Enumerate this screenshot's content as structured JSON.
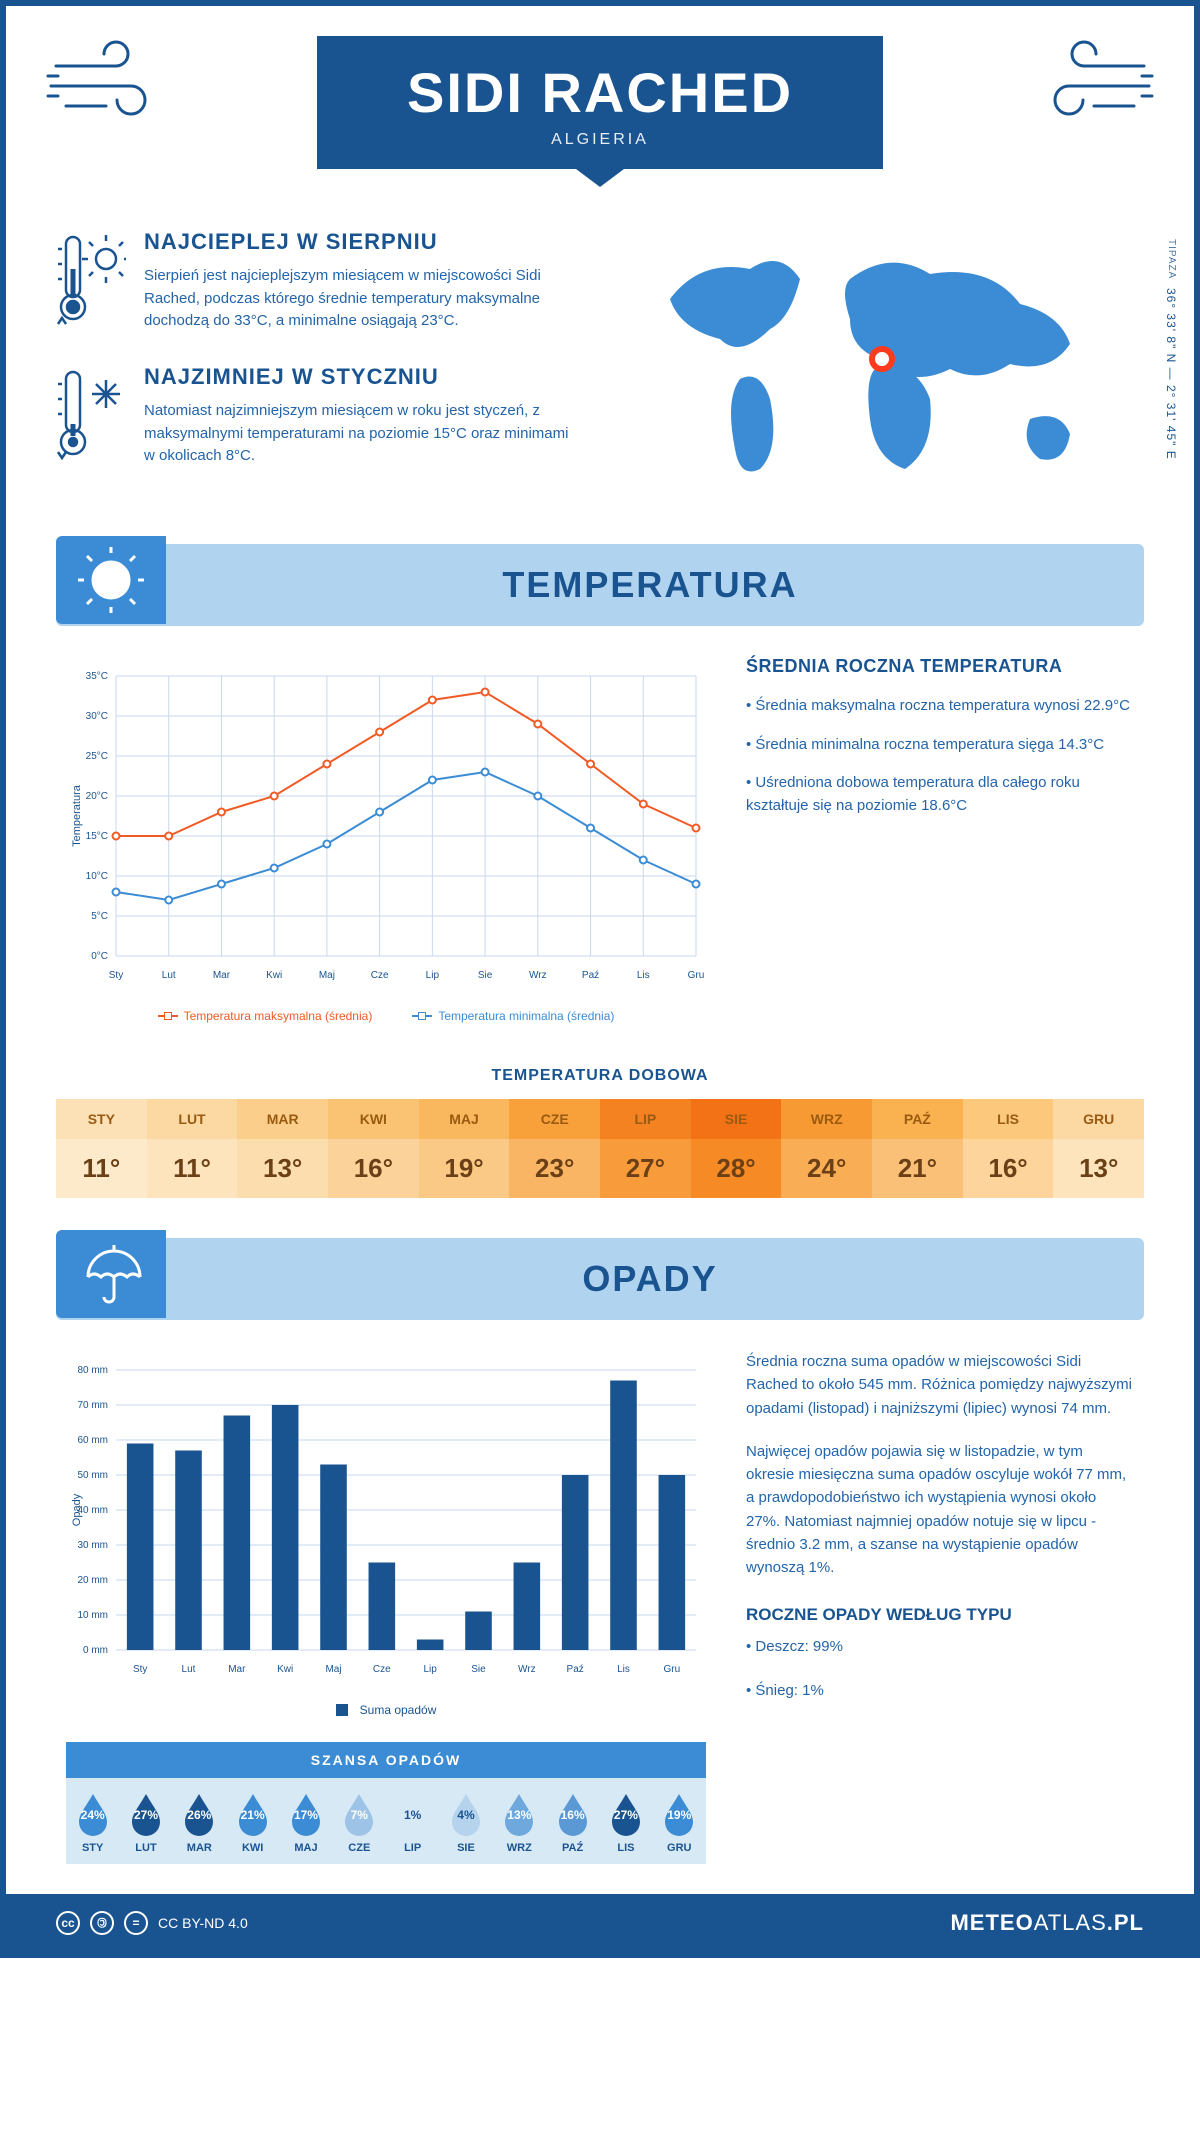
{
  "header": {
    "city": "SIDI RACHED",
    "country": "ALGIERIA"
  },
  "coords": {
    "region": "TIPAZA",
    "value": "36° 33' 8\" N — 2° 31' 45\" E"
  },
  "warmest": {
    "title": "NAJCIEPLEJ W SIERPNIU",
    "text": "Sierpień jest najcieplejszym miesiącem w miejscowości Sidi Rached, podczas którego średnie temperatury maksymalne dochodzą do 33°C, a minimalne osiągają 23°C."
  },
  "coldest": {
    "title": "NAJZIMNIEJ W STYCZNIU",
    "text": "Natomiast najzimniejszym miesiącem w roku jest styczeń, z maksymalnymi temperaturami na poziomie 15°C oraz minimami w okolicach 8°C."
  },
  "temp_section": {
    "title": "TEMPERATURA",
    "side_title": "ŚREDNIA ROCZNA TEMPERATURA",
    "b1": "• Średnia maksymalna roczna temperatura wynosi 22.9°C",
    "b2": "• Średnia minimalna roczna temperatura sięga 14.3°C",
    "b3": "• Uśredniona dobowa temperatura dla całego roku kształtuje się na poziomie 18.6°C"
  },
  "temp_chart": {
    "type": "line",
    "months": [
      "Sty",
      "Lut",
      "Mar",
      "Kwi",
      "Maj",
      "Cze",
      "Lip",
      "Sie",
      "Wrz",
      "Paź",
      "Lis",
      "Gru"
    ],
    "max": [
      15,
      15,
      18,
      20,
      24,
      28,
      32,
      33,
      29,
      24,
      19,
      16
    ],
    "min": [
      8,
      7,
      9,
      11,
      14,
      18,
      22,
      23,
      20,
      16,
      12,
      9
    ],
    "colors": {
      "max": "#f15a24",
      "min": "#3b8cd4",
      "grid": "#c7d9ec",
      "axis": "#1a5490"
    },
    "ylim": [
      0,
      35
    ],
    "ystep": 5,
    "ylabel": "Temperatura",
    "legend_max": "Temperatura maksymalna (średnia)",
    "legend_min": "Temperatura minimalna (średnia)",
    "axis_fontsize": 10,
    "label_fontsize": 11
  },
  "daily": {
    "title": "TEMPERATURA DOBOWA",
    "months": [
      "STY",
      "LUT",
      "MAR",
      "KWI",
      "MAJ",
      "CZE",
      "LIP",
      "SIE",
      "WRZ",
      "PAŹ",
      "LIS",
      "GRU"
    ],
    "values": [
      "11°",
      "11°",
      "13°",
      "16°",
      "19°",
      "23°",
      "27°",
      "28°",
      "24°",
      "21°",
      "16°",
      "13°"
    ],
    "head_colors": [
      "#fce0b6",
      "#fcd9a3",
      "#fbcf8b",
      "#fac374",
      "#f9b85d",
      "#f8a03a",
      "#f58220",
      "#f47216",
      "#f89a34",
      "#fab14f",
      "#fcc87c",
      "#fcd9a3"
    ],
    "val_colors": [
      "#fdeacb",
      "#fde4bd",
      "#fcddae",
      "#fbd39a",
      "#fac986",
      "#f9b564",
      "#f79b3b",
      "#f68a25",
      "#f9ae55",
      "#fac078",
      "#fcd49c",
      "#fde4bd"
    ]
  },
  "precip_section": {
    "title": "OPADY",
    "p1": "Średnia roczna suma opadów w miejscowości Sidi Rached to około 545 mm. Różnica pomiędzy najwyższymi opadami (listopad) i najniższymi (lipiec) wynosi 74 mm.",
    "p2": "Najwięcej opadów pojawia się w listopadzie, w tym okresie miesięczna suma opadów oscyluje wokół 77 mm, a prawdopodobieństwo ich wystąpienia wynosi około 27%. Natomiast najmniej opadów notuje się w lipcu - średnio 3.2 mm, a szanse na wystąpienie opadów wynoszą 1%.",
    "by_type_title": "ROCZNE OPADY WEDŁUG TYPU",
    "rain": "• Deszcz: 99%",
    "snow": "• Śnieg: 1%"
  },
  "precip_chart": {
    "type": "bar",
    "months": [
      "Sty",
      "Lut",
      "Mar",
      "Kwi",
      "Maj",
      "Cze",
      "Lip",
      "Sie",
      "Wrz",
      "Paź",
      "Lis",
      "Gru"
    ],
    "values": [
      59,
      57,
      67,
      70,
      53,
      25,
      3,
      11,
      25,
      50,
      77,
      50
    ],
    "bar_color": "#1a5490",
    "grid_color": "#c7d9ec",
    "ylim": [
      0,
      80
    ],
    "ystep": 10,
    "ylabel": "Opady",
    "legend": "Suma opadów",
    "axis_fontsize": 10
  },
  "chance": {
    "title": "SZANSA OPADÓW",
    "months": [
      "STY",
      "LUT",
      "MAR",
      "KWI",
      "MAJ",
      "CZE",
      "LIP",
      "SIE",
      "WRZ",
      "PAŹ",
      "LIS",
      "GRU"
    ],
    "values": [
      "24%",
      "27%",
      "26%",
      "21%",
      "17%",
      "7%",
      "1%",
      "4%",
      "13%",
      "16%",
      "27%",
      "19%"
    ],
    "drop_colors": [
      "#3b8cd4",
      "#1a5490",
      "#1a5490",
      "#3b8cd4",
      "#3b8cd4",
      "#9dc3e6",
      "#d8e9f6",
      "#b5d3ec",
      "#6fa8dc",
      "#5a99d4",
      "#1a5490",
      "#3b8cd4"
    ]
  },
  "footer": {
    "license": "CC BY-ND 4.0",
    "brand_a": "METEO",
    "brand_b": "ATLAS",
    "brand_c": ".PL"
  },
  "palette": {
    "primary": "#1a5490",
    "light": "#b0d3ef",
    "mid": "#3b8cd4"
  }
}
